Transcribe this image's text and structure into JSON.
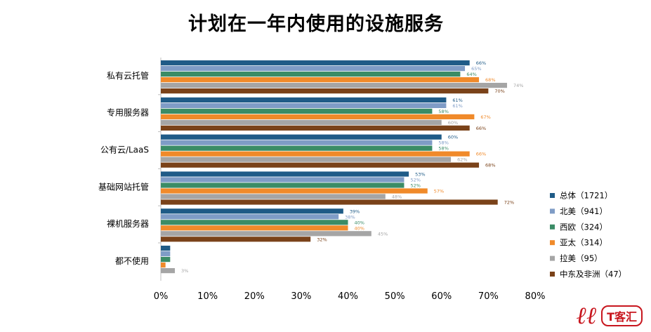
{
  "title": "计划在一年内使用的设施服务",
  "logo": {
    "text": "T客汇"
  },
  "chart_data": {
    "type": "bar",
    "orientation": "horizontal",
    "categories": [
      "私有云托管",
      "专用服务器",
      "公有云/LaaS",
      "基础网站托管",
      "裸机服务器",
      "都不使用"
    ],
    "series": [
      {
        "name": "总体（1721）",
        "color": "#1f5b87",
        "values": [
          66,
          61,
          60,
          53,
          39,
          2
        ]
      },
      {
        "name": "北美（941）",
        "color": "#7f9cc6",
        "values": [
          65,
          61,
          58,
          52,
          38,
          2
        ]
      },
      {
        "name": "西欧（324）",
        "color": "#3b8c66",
        "values": [
          64,
          58,
          58,
          52,
          40,
          2
        ]
      },
      {
        "name": "亚太（314）",
        "color": "#f08a2a",
        "values": [
          68,
          67,
          66,
          57,
          40,
          1
        ]
      },
      {
        "name": "拉美（95）",
        "color": "#a5a5a5",
        "values": [
          74,
          60,
          62,
          48,
          45,
          3
        ]
      },
      {
        "name": "中东及非洲（47）",
        "color": "#7a4219",
        "values": [
          70,
          66,
          68,
          72,
          32,
          null
        ]
      }
    ],
    "data_labels": [
      [
        "66%",
        "65%",
        "64%",
        "68%",
        "74%",
        "70%"
      ],
      [
        "61%",
        "61%",
        "58%",
        "67%",
        "60%",
        "66%"
      ],
      [
        "60%",
        "58%",
        "58%",
        "66%",
        "62%",
        "68%"
      ],
      [
        "53%",
        "52%",
        "52%",
        "57%",
        "48%",
        "72%"
      ],
      [
        "39%",
        "38%",
        "40%",
        "40%",
        "45%",
        "32%"
      ],
      [
        "",
        "",
        "",
        "",
        "3%",
        ""
      ]
    ],
    "x_ticks": [
      "0%",
      "10%",
      "20%",
      "30%",
      "40%",
      "50%",
      "60%",
      "70%",
      "80%"
    ],
    "xlim": [
      0,
      80
    ],
    "grid": false,
    "legend_position": "right"
  }
}
